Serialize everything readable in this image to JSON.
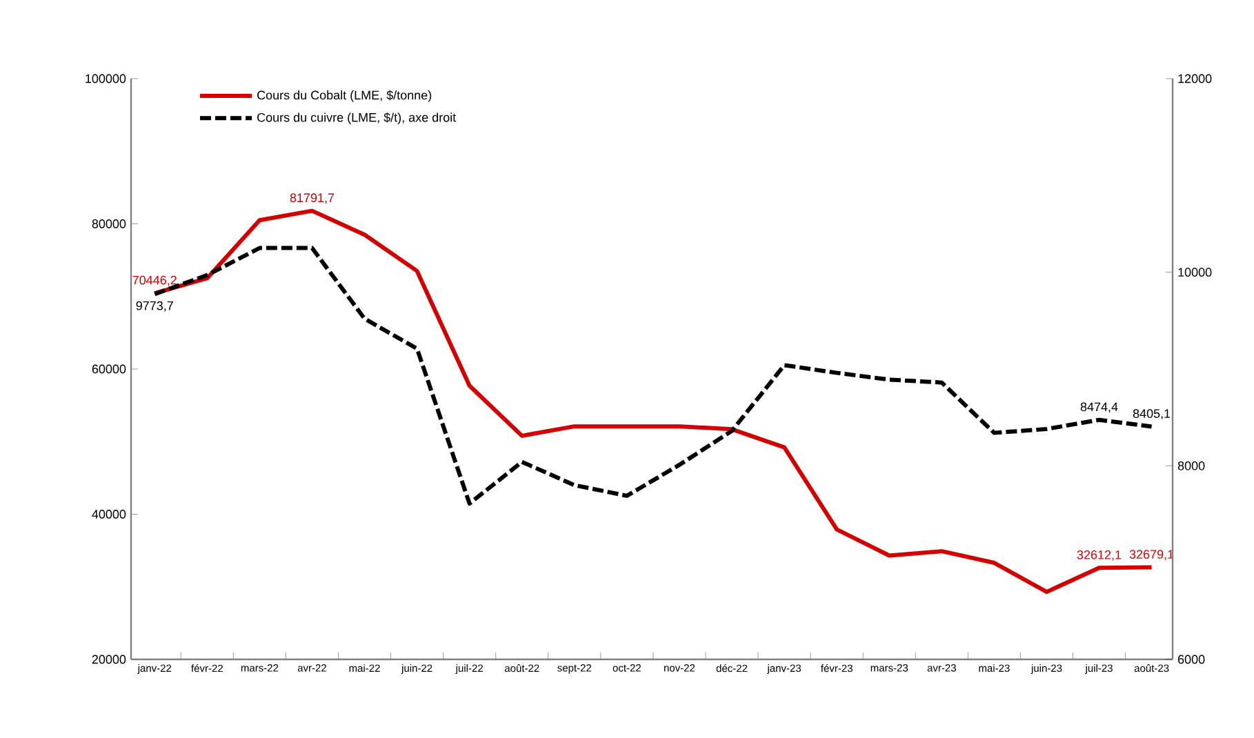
{
  "chart_data": {
    "type": "line",
    "categories": [
      "janv-22",
      "févr-22",
      "mars-22",
      "avr-22",
      "mai-22",
      "juin-22",
      "juil-22",
      "août-22",
      "sept-22",
      "oct-22",
      "nov-22",
      "déc-22",
      "janv-23",
      "févr-23",
      "mars-23",
      "avr-23",
      "mai-23",
      "juin-23",
      "juil-23",
      "août-23"
    ],
    "series": [
      {
        "name": "Cours du Cobalt (LME, $/tonne)",
        "color": "#d40000",
        "line_style": "solid",
        "values": [
          70446.2,
          72500,
          80500,
          81791.7,
          78500,
          73500,
          57700,
          50800,
          52100,
          52100,
          52100,
          51700,
          49200,
          37900,
          34300,
          34900,
          33300,
          29300,
          32612.1,
          32679.1
        ],
        "value_labels": [
          "70446,2",
          null,
          null,
          "81791,7",
          null,
          null,
          null,
          null,
          null,
          null,
          null,
          null,
          null,
          null,
          null,
          null,
          null,
          null,
          "32612,1",
          "32679,1"
        ]
      },
      {
        "name": "Cours du cuivre (LME, $/t), axe droit",
        "color": "#000000",
        "line_style": "dashed",
        "axis": "y2",
        "values": [
          9773.7,
          9970,
          10250,
          10250,
          9520,
          9210,
          7610,
          8040,
          7800,
          7690,
          8010,
          8360,
          9040,
          8960,
          8890,
          8860,
          8340,
          8380,
          8474.4,
          8405.1
        ],
        "value_labels": [
          "9773,7",
          null,
          null,
          null,
          null,
          null,
          null,
          null,
          null,
          null,
          null,
          null,
          null,
          null,
          null,
          null,
          null,
          null,
          "8474,4",
          "8405,1"
        ]
      }
    ],
    "ylim": [
      20000,
      100000
    ],
    "yticks": [
      20000,
      40000,
      60000,
      80000,
      100000
    ],
    "y2lim": [
      6000,
      12000
    ],
    "y2ticks": [
      6000,
      8000,
      10000,
      12000
    ],
    "legend": "top left",
    "marker": "none"
  }
}
